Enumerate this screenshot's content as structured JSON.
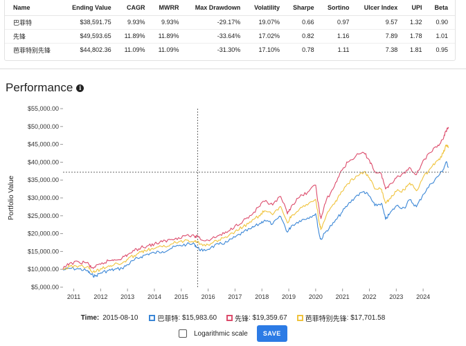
{
  "stats_table": {
    "headers": [
      "Name",
      "Ending Value",
      "CAGR",
      "MWRR",
      "Max Drawdown",
      "Volatility",
      "Sharpe",
      "Sortino",
      "Ulcer Index",
      "UPI",
      "Beta"
    ],
    "rows": [
      [
        "巴菲特",
        "$38,591.75",
        "9.93%",
        "9.93%",
        "-29.17%",
        "19.07%",
        "0.66",
        "0.97",
        "9.57",
        "1.32",
        "0.90"
      ],
      [
        "先锋",
        "$49,593.65",
        "11.89%",
        "11.89%",
        "-33.64%",
        "17.02%",
        "0.82",
        "1.16",
        "7.89",
        "1.78",
        "1.01"
      ],
      [
        "芭菲特别先锋",
        "$44,802.36",
        "11.09%",
        "11.09%",
        "-31.30%",
        "17.10%",
        "0.78",
        "1.11",
        "7.38",
        "1.81",
        "0.95"
      ]
    ]
  },
  "section": {
    "title": "Performance",
    "info_glyph": "i"
  },
  "chart_data": {
    "type": "line",
    "ylabel": "Portfolio Value",
    "xlabel": "",
    "ylim": [
      5000,
      55000
    ],
    "y_ticks": [
      5000,
      10000,
      15000,
      20000,
      25000,
      30000,
      35000,
      40000,
      45000,
      50000,
      55000
    ],
    "y_tick_labels": [
      "$5,000.00",
      "$10,000.00",
      "$15,000.00",
      "$20,000.00",
      "$25,000.00",
      "$30,000.00",
      "$35,000.00",
      "$40,000.00",
      "$45,000.00",
      "$50,000.00",
      "$55,000.00"
    ],
    "xlim": [
      2010.6,
      2024.95
    ],
    "x_ticks": [
      2011,
      2012,
      2013,
      2014,
      2015,
      2016,
      2017,
      2018,
      2019,
      2020,
      2021,
      2022,
      2023,
      2024
    ],
    "x_tick_labels": [
      "2011",
      "2012",
      "2013",
      "2014",
      "2015",
      "2016",
      "2017",
      "2018",
      "2019",
      "2020",
      "2021",
      "2022",
      "2023",
      "2024"
    ],
    "grid": false,
    "crosshair": {
      "x": 2015.61,
      "y": 37200
    },
    "series": [
      {
        "name": "巴菲特",
        "color": "#3a86d6",
        "x": [
          2010.6,
          2010.85,
          2011.2,
          2011.5,
          2011.65,
          2011.8,
          2012.0,
          2012.3,
          2012.5,
          2012.8,
          2013.0,
          2013.25,
          2013.5,
          2013.75,
          2014.0,
          2014.3,
          2014.6,
          2014.9,
          2015.2,
          2015.5,
          2015.61,
          2015.8,
          2016.1,
          2016.4,
          2016.7,
          2017.0,
          2017.3,
          2017.6,
          2017.9,
          2018.1,
          2018.4,
          2018.7,
          2018.95,
          2019.1,
          2019.4,
          2019.7,
          2020.0,
          2020.15,
          2020.2,
          2020.4,
          2020.7,
          2020.95,
          2021.2,
          2021.5,
          2021.8,
          2022.0,
          2022.2,
          2022.45,
          2022.6,
          2022.75,
          2023.0,
          2023.3,
          2023.5,
          2023.75,
          2024.0,
          2024.3,
          2024.55,
          2024.75,
          2024.85,
          2024.95
        ],
        "values": [
          9800,
          10300,
          10100,
          9600,
          8500,
          8100,
          9000,
          9700,
          9900,
          10300,
          11300,
          12600,
          13500,
          14300,
          14600,
          15000,
          15800,
          16600,
          17000,
          17000,
          16000,
          15100,
          16100,
          17000,
          17600,
          19000,
          20300,
          21400,
          22700,
          23800,
          22700,
          24800,
          20400,
          22200,
          23600,
          24400,
          25600,
          19200,
          18400,
          20800,
          23200,
          25700,
          28100,
          30500,
          31800,
          30500,
          27800,
          28500,
          24000,
          25500,
          27800,
          27200,
          29500,
          27500,
          31000,
          34000,
          36000,
          38000,
          40000,
          38600
        ]
      },
      {
        "name": "先锋",
        "color": "#dc4b6b",
        "x": [
          2010.6,
          2010.85,
          2011.2,
          2011.5,
          2011.65,
          2011.8,
          2012.0,
          2012.3,
          2012.5,
          2012.8,
          2013.0,
          2013.25,
          2013.5,
          2013.75,
          2014.0,
          2014.3,
          2014.6,
          2014.9,
          2015.2,
          2015.5,
          2015.61,
          2015.8,
          2016.1,
          2016.4,
          2016.7,
          2017.0,
          2017.3,
          2017.6,
          2017.9,
          2018.1,
          2018.4,
          2018.7,
          2018.95,
          2019.1,
          2019.4,
          2019.7,
          2020.0,
          2020.15,
          2020.2,
          2020.4,
          2020.7,
          2020.95,
          2021.2,
          2021.5,
          2021.8,
          2022.0,
          2022.2,
          2022.45,
          2022.6,
          2022.75,
          2023.0,
          2023.3,
          2023.5,
          2023.75,
          2024.0,
          2024.3,
          2024.55,
          2024.75,
          2024.85,
          2024.95
        ],
        "values": [
          10100,
          11700,
          12000,
          11900,
          10400,
          10600,
          11400,
          12400,
          12700,
          13200,
          14100,
          15200,
          16100,
          16600,
          17100,
          17700,
          18300,
          18900,
          19600,
          19100,
          19400,
          18100,
          18400,
          19500,
          20300,
          22200,
          23600,
          25100,
          27600,
          29000,
          28000,
          30400,
          25500,
          27800,
          30200,
          31600,
          33600,
          25600,
          24200,
          29500,
          33300,
          37600,
          40000,
          41800,
          42600,
          40600,
          37400,
          36600,
          32500,
          33800,
          35600,
          37000,
          38500,
          36500,
          40500,
          42800,
          44800,
          46500,
          48800,
          49600
        ]
      },
      {
        "name": "芭菲特别先锋",
        "color": "#f0c33c",
        "x": [
          2010.6,
          2010.85,
          2011.2,
          2011.5,
          2011.65,
          2011.8,
          2012.0,
          2012.3,
          2012.5,
          2012.8,
          2013.0,
          2013.25,
          2013.5,
          2013.75,
          2014.0,
          2014.3,
          2014.6,
          2014.9,
          2015.2,
          2015.5,
          2015.61,
          2015.8,
          2016.1,
          2016.4,
          2016.7,
          2017.0,
          2017.3,
          2017.6,
          2017.9,
          2018.1,
          2018.4,
          2018.7,
          2018.95,
          2019.1,
          2019.4,
          2019.7,
          2020.0,
          2020.15,
          2020.2,
          2020.4,
          2020.7,
          2020.95,
          2021.2,
          2021.5,
          2021.8,
          2022.0,
          2022.2,
          2022.45,
          2022.6,
          2022.75,
          2023.0,
          2023.3,
          2023.5,
          2023.75,
          2024.0,
          2024.3,
          2024.55,
          2024.75,
          2024.85,
          2024.95
        ],
        "values": [
          9900,
          10800,
          11000,
          10700,
          9500,
          9300,
          10200,
          11000,
          11300,
          11700,
          12700,
          13900,
          14800,
          15400,
          15800,
          16300,
          17000,
          17700,
          18200,
          18000,
          17700,
          16600,
          17200,
          18200,
          18900,
          20600,
          21900,
          23200,
          25100,
          26400,
          25300,
          27600,
          23000,
          25000,
          26900,
          28000,
          29600,
          22400,
          21300,
          25200,
          28300,
          31700,
          34000,
          36100,
          37300,
          35600,
          32500,
          32400,
          28500,
          29800,
          31800,
          32200,
          34200,
          32000,
          35800,
          38500,
          40500,
          42500,
          44800,
          44200
        ]
      }
    ]
  },
  "legend": {
    "time_label": "Time:",
    "time_value": "2015-08-10",
    "items": [
      {
        "name": "巴菲特",
        "value": "$15,983.60",
        "color": "#3a86d6"
      },
      {
        "name": "先锋",
        "value": "$19,359.67",
        "color": "#dc4b6b"
      },
      {
        "name": "芭菲特别先锋",
        "value": "$17,701.58",
        "color": "#f0c33c"
      }
    ]
  },
  "controls": {
    "log_scale_label": "Logarithmic scale",
    "log_scale_checked": false,
    "save_label": "SAVE"
  }
}
